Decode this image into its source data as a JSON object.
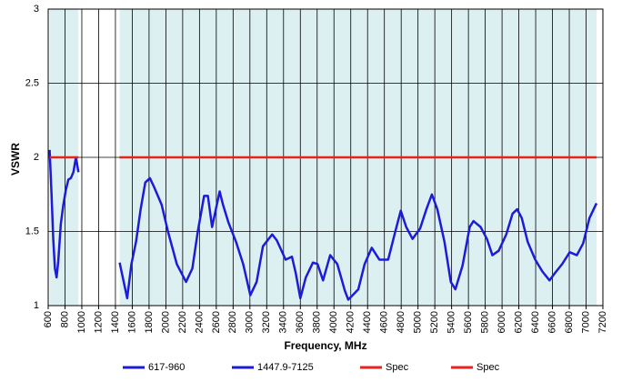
{
  "chart_data": {
    "type": "line",
    "x_label": "Frequency, MHz",
    "y_label": "VSWR",
    "xlim": [
      600,
      7200
    ],
    "ylim": [
      1,
      3
    ],
    "xticks": [
      600,
      800,
      1000,
      1200,
      1400,
      1600,
      1800,
      2000,
      2200,
      2400,
      2600,
      2800,
      3000,
      3200,
      3400,
      3600,
      3800,
      4000,
      4200,
      4400,
      4600,
      4800,
      5000,
      5200,
      5400,
      5600,
      5800,
      6000,
      6200,
      6400,
      6600,
      6800,
      7000,
      7200
    ],
    "yticks": [
      1,
      1.5,
      2,
      2.5,
      3
    ],
    "grid": true,
    "band_color": "#dcf0f2",
    "series": [
      {
        "name": "617-960",
        "color": "#1c1cd8",
        "x": [
          617,
          640,
          660,
          680,
          700,
          720,
          750,
          780,
          810,
          840,
          870,
          900,
          930,
          960
        ],
        "values": [
          2.05,
          1.75,
          1.45,
          1.25,
          1.19,
          1.3,
          1.55,
          1.68,
          1.78,
          1.85,
          1.86,
          1.9,
          2.0,
          1.9
        ]
      },
      {
        "name": "1447.9-7125",
        "color": "#1c1cd8",
        "x": [
          1450,
          1540,
          1590,
          1645,
          1700,
          1755,
          1810,
          1860,
          1950,
          2025,
          2130,
          2240,
          2315,
          2380,
          2455,
          2500,
          2550,
          2595,
          2640,
          2680,
          2745,
          2835,
          2920,
          3005,
          3080,
          3155,
          3265,
          3320,
          3425,
          3500,
          3545,
          3600,
          3665,
          3750,
          3805,
          3870,
          3955,
          4040,
          4130,
          4170,
          4290,
          4365,
          4450,
          4540,
          4645,
          4730,
          4795,
          4860,
          4935,
          5025,
          5100,
          5165,
          5230,
          5315,
          5390,
          5445,
          5530,
          5615,
          5660,
          5745,
          5820,
          5885,
          5960,
          6050,
          6125,
          6180,
          6235,
          6305,
          6395,
          6480,
          6565,
          6630,
          6715,
          6805,
          6890,
          6965,
          7040,
          7115,
          7125
        ],
        "values": [
          1.29,
          1.05,
          1.28,
          1.43,
          1.65,
          1.83,
          1.86,
          1.8,
          1.68,
          1.5,
          1.28,
          1.16,
          1.25,
          1.5,
          1.74,
          1.74,
          1.53,
          1.65,
          1.77,
          1.68,
          1.56,
          1.43,
          1.28,
          1.07,
          1.16,
          1.4,
          1.48,
          1.44,
          1.31,
          1.33,
          1.22,
          1.05,
          1.19,
          1.29,
          1.28,
          1.17,
          1.34,
          1.28,
          1.1,
          1.04,
          1.11,
          1.28,
          1.39,
          1.31,
          1.31,
          1.5,
          1.64,
          1.53,
          1.45,
          1.52,
          1.65,
          1.75,
          1.65,
          1.43,
          1.16,
          1.11,
          1.27,
          1.53,
          1.57,
          1.53,
          1.45,
          1.34,
          1.37,
          1.48,
          1.62,
          1.65,
          1.59,
          1.43,
          1.31,
          1.23,
          1.17,
          1.22,
          1.28,
          1.36,
          1.34,
          1.42,
          1.59,
          1.68,
          1.69
        ]
      },
      {
        "name": "Spec",
        "color": "#e8221c",
        "x": [
          617,
          960
        ],
        "values": [
          2,
          2
        ]
      },
      {
        "name": "Spec",
        "color": "#e8221c",
        "x": [
          1447.9,
          7125
        ],
        "values": [
          2,
          2
        ]
      }
    ]
  }
}
